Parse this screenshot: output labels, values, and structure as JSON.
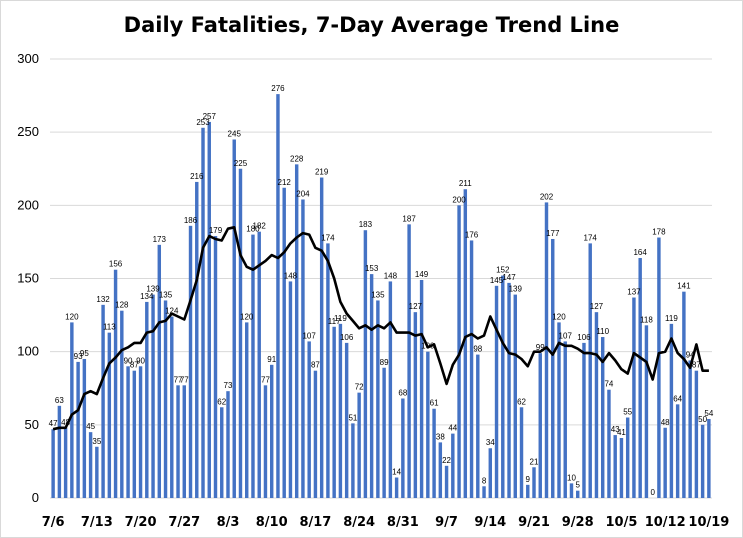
{
  "chart_data": {
    "type": "bar",
    "title": "Daily Fatalities, 7-Day Average Trend Line",
    "xlabel": "",
    "ylabel": "",
    "ylim": [
      0,
      300
    ],
    "yticks": [
      "0",
      "50",
      "100",
      "150",
      "200",
      "250",
      "300"
    ],
    "grid": "horizontal",
    "legend": "none",
    "colors": {
      "bars": "#4472C4",
      "trend": "#000000",
      "grid": "#d9d9d9"
    },
    "xtick_labels": [
      {
        "index": 0,
        "label": "7/6"
      },
      {
        "index": 7,
        "label": "7/13"
      },
      {
        "index": 14,
        "label": "7/20"
      },
      {
        "index": 21,
        "label": "7/27"
      },
      {
        "index": 28,
        "label": "8/3"
      },
      {
        "index": 35,
        "label": "8/10"
      },
      {
        "index": 42,
        "label": "8/17"
      },
      {
        "index": 49,
        "label": "8/24"
      },
      {
        "index": 56,
        "label": "8/31"
      },
      {
        "index": 63,
        "label": "9/7"
      },
      {
        "index": 70,
        "label": "9/14"
      },
      {
        "index": 77,
        "label": "9/21"
      },
      {
        "index": 84,
        "label": "9/28"
      },
      {
        "index": 91,
        "label": "10/5"
      },
      {
        "index": 98,
        "label": "10/12"
      },
      {
        "index": 105,
        "label": "10/19"
      }
    ],
    "series": [
      {
        "type": "bar",
        "values": [
          47,
          63,
          48,
          120,
          93,
          95,
          45,
          35,
          132,
          113,
          156,
          128,
          90,
          87,
          90,
          134,
          139,
          173,
          135,
          124,
          77,
          77,
          186,
          216,
          253,
          257,
          179,
          62,
          73,
          245,
          225,
          120,
          180,
          182,
          77,
          91,
          276,
          212,
          148,
          228,
          204,
          107,
          87,
          219,
          174,
          117,
          119,
          106,
          51,
          72,
          183,
          153,
          135,
          89,
          148,
          14,
          68,
          187,
          127,
          149,
          100,
          61,
          38,
          22,
          44,
          200,
          211,
          176,
          98,
          8,
          34,
          145,
          152,
          147,
          139,
          62,
          9,
          21,
          99,
          202,
          177,
          120,
          107,
          10,
          5,
          106,
          174,
          127,
          110,
          74,
          43,
          41,
          55,
          137,
          164,
          118,
          0,
          178,
          48,
          119,
          64,
          141,
          94,
          87,
          50,
          54
        ]
      },
      {
        "type": "line",
        "name": "7-Day Average",
        "values": [
          47,
          48,
          48,
          57,
          60,
          71,
          73,
          71,
          82,
          92,
          96,
          101,
          103,
          106,
          106,
          113,
          114,
          120,
          121,
          126,
          124,
          122,
          135,
          149,
          171,
          179,
          177,
          176,
          184,
          185,
          166,
          158,
          156,
          159,
          162,
          166,
          164,
          168,
          174,
          178,
          181,
          180,
          171,
          169,
          162,
          150,
          134,
          126,
          121,
          116,
          118,
          115,
          118,
          116,
          120,
          113,
          113,
          113,
          111,
          112,
          103,
          105,
          92,
          78,
          91,
          98,
          110,
          112,
          109,
          111,
          124,
          115,
          106,
          99,
          98,
          95,
          90,
          100,
          100,
          103,
          98,
          106,
          104,
          104,
          102,
          99,
          99,
          98,
          93,
          99,
          94,
          88,
          85,
          99,
          96,
          93,
          81,
          99,
          100,
          109,
          99,
          95,
          89,
          105,
          87,
          87
        ]
      }
    ]
  }
}
